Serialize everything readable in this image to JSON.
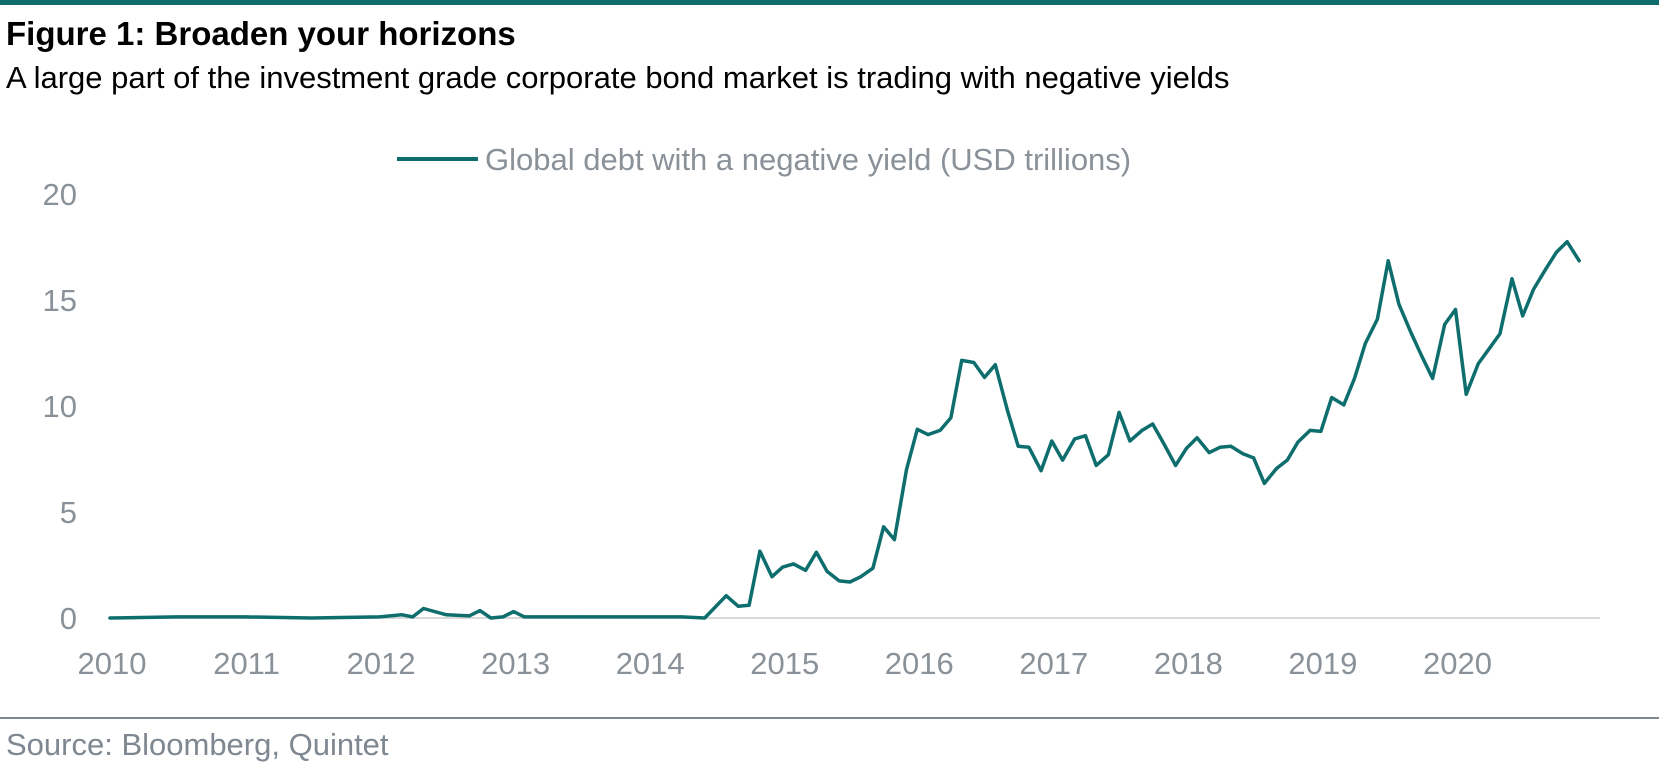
{
  "title": "Figure 1: Broaden your horizons",
  "subtitle": "A large part of the investment grade corporate bond market is trading with negative yields",
  "source": "Source: Bloomberg, Quintet",
  "colors": {
    "accent": "#0e6e6e",
    "axis_text": "#8a9199",
    "grid": "#d9d9d9"
  },
  "chart_data": {
    "type": "line",
    "title": "Figure 1: Broaden your horizons",
    "xlabel": "",
    "ylabel": "",
    "xlim": [
      2010,
      2021
    ],
    "ylim": [
      0,
      20
    ],
    "x_ticks": [
      "2010",
      "2011",
      "2012",
      "2013",
      "2014",
      "2015",
      "2016",
      "2017",
      "2018",
      "2019",
      "2020"
    ],
    "y_ticks": [
      "0",
      "5",
      "10",
      "15",
      "20"
    ],
    "grid": false,
    "legend_position": "top-center",
    "series": [
      {
        "name": "Global debt with a negative yield (USD trillions)",
        "color": "#0e6e6e",
        "x": [
          2010.0,
          2010.5,
          2011.0,
          2011.5,
          2012.0,
          2012.17,
          2012.25,
          2012.33,
          2012.5,
          2012.67,
          2012.75,
          2012.83,
          2012.92,
          2013.0,
          2013.08,
          2013.17,
          2013.5,
          2014.0,
          2014.25,
          2014.42,
          2014.58,
          2014.67,
          2014.75,
          2014.83,
          2014.92,
          2015.0,
          2015.08,
          2015.17,
          2015.25,
          2015.33,
          2015.42,
          2015.5,
          2015.58,
          2015.67,
          2015.75,
          2015.83,
          2015.92,
          2016.0,
          2016.08,
          2016.17,
          2016.25,
          2016.33,
          2016.42,
          2016.5,
          2016.58,
          2016.67,
          2016.75,
          2016.83,
          2016.92,
          2017.0,
          2017.08,
          2017.17,
          2017.25,
          2017.33,
          2017.42,
          2017.5,
          2017.58,
          2017.67,
          2017.75,
          2017.83,
          2017.92,
          2018.0,
          2018.08,
          2018.17,
          2018.25,
          2018.33,
          2018.42,
          2018.5,
          2018.58,
          2018.67,
          2018.75,
          2018.83,
          2018.92,
          2019.0,
          2019.08,
          2019.17,
          2019.25,
          2019.33,
          2019.42,
          2019.5,
          2019.58,
          2019.67,
          2019.75,
          2019.83,
          2019.92,
          2020.0,
          2020.08,
          2020.17,
          2020.25,
          2020.33,
          2020.42,
          2020.5,
          2020.58,
          2020.67,
          2020.75,
          2020.83,
          2020.92
        ],
        "values": [
          0.0,
          0.05,
          0.05,
          0.0,
          0.05,
          0.15,
          0.05,
          0.45,
          0.15,
          0.1,
          0.35,
          0.0,
          0.05,
          0.3,
          0.05,
          0.05,
          0.05,
          0.05,
          0.05,
          0.0,
          1.05,
          0.55,
          0.6,
          3.15,
          1.95,
          2.4,
          2.55,
          2.25,
          3.1,
          2.2,
          1.75,
          1.7,
          1.95,
          2.35,
          4.3,
          3.7,
          7.0,
          8.9,
          8.65,
          8.85,
          9.45,
          12.15,
          12.05,
          11.35,
          11.95,
          9.8,
          8.1,
          8.05,
          6.95,
          8.35,
          7.45,
          8.45,
          8.6,
          7.2,
          7.7,
          9.7,
          8.35,
          8.85,
          9.15,
          8.25,
          7.2,
          8.0,
          8.5,
          7.8,
          8.05,
          8.1,
          7.75,
          7.55,
          6.35,
          7.05,
          7.45,
          8.3,
          8.85,
          8.8,
          10.4,
          10.05,
          11.3,
          12.95,
          14.1,
          16.85,
          14.8,
          13.45,
          12.35,
          11.3,
          13.85,
          14.55,
          10.55,
          12.0,
          12.7,
          13.4,
          16.0,
          14.25,
          15.5,
          16.45,
          17.25,
          17.75,
          16.85
        ]
      }
    ]
  }
}
